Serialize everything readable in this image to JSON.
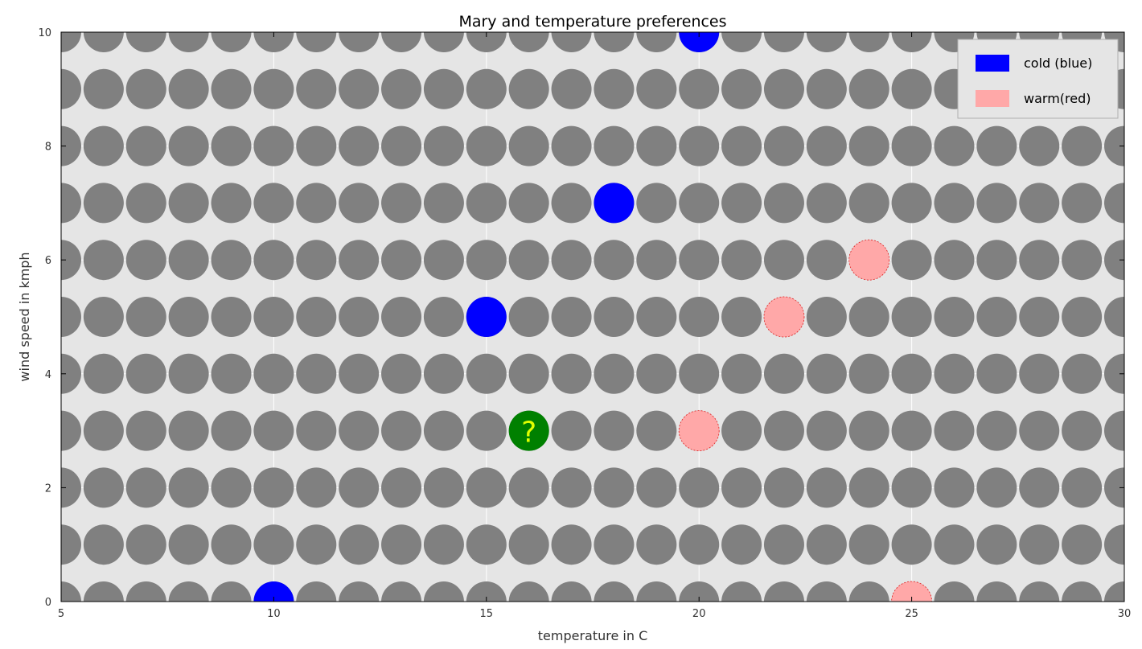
{
  "chart_data": {
    "type": "scatter",
    "title": "Mary and temperature preferences",
    "xlabel": "temperature in C",
    "ylabel": "wind speed in kmph",
    "xlim": [
      5,
      30
    ],
    "ylim": [
      0,
      10
    ],
    "xticks": [
      5,
      10,
      15,
      20,
      25,
      30
    ],
    "yticks": [
      0,
      2,
      4,
      6,
      8,
      10
    ],
    "grid": true,
    "legend_placement": "top-right",
    "background_grid_points": {
      "x_range": [
        5,
        30
      ],
      "x_step": 1,
      "y_range": [
        0,
        10
      ],
      "y_step": 1,
      "color": "#808080"
    },
    "series": [
      {
        "name": "cold (blue)",
        "color": "#0000ff",
        "points": [
          {
            "x": 10,
            "y": 0
          },
          {
            "x": 15,
            "y": 5
          },
          {
            "x": 18,
            "y": 7
          },
          {
            "x": 20,
            "y": 10
          }
        ]
      },
      {
        "name": "warm(red)",
        "color": "#ffa8a8",
        "points": [
          {
            "x": 20,
            "y": 3
          },
          {
            "x": 22,
            "y": 5
          },
          {
            "x": 24,
            "y": 6
          },
          {
            "x": 25,
            "y": 0
          }
        ]
      }
    ],
    "query_point": {
      "x": 16,
      "y": 3,
      "color": "#008000",
      "label": "?",
      "label_color": "#dfff00"
    }
  }
}
